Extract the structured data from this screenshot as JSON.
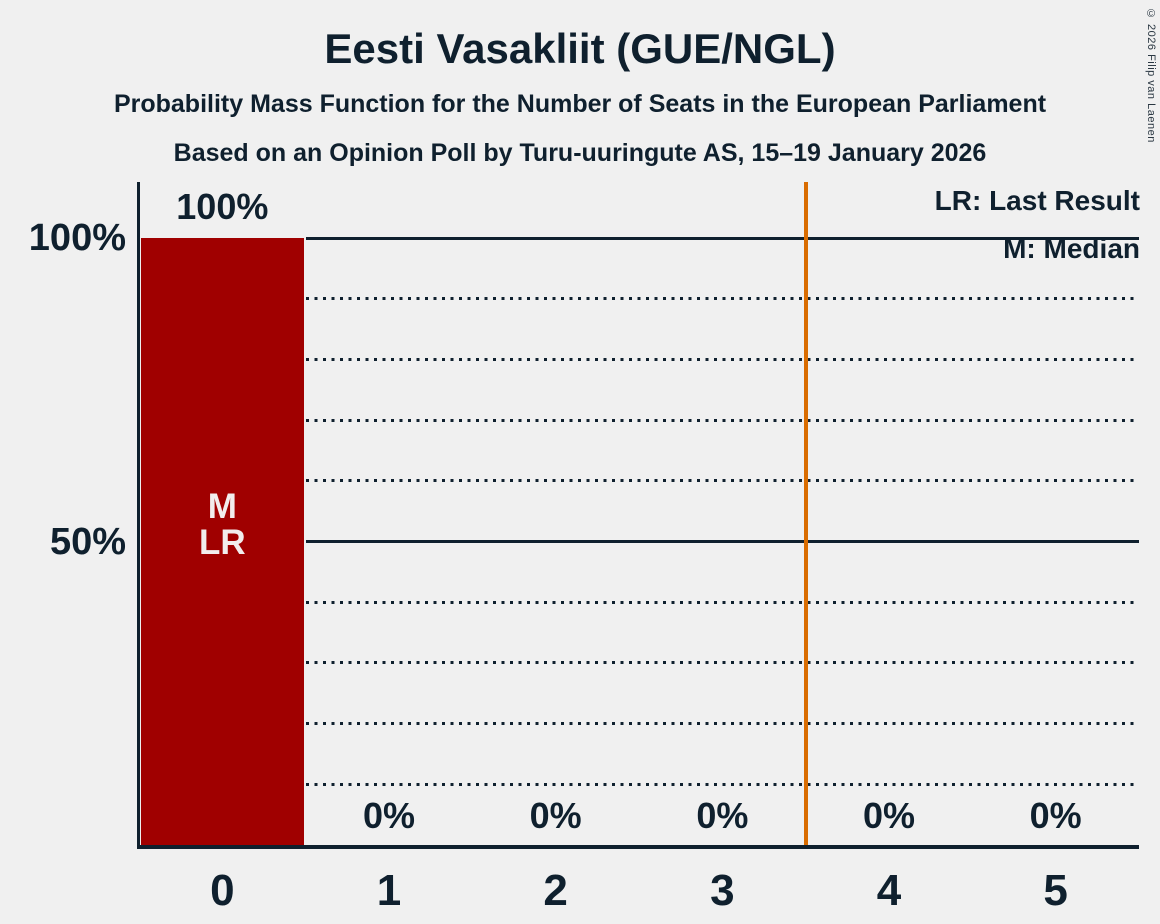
{
  "header": {
    "title": "Eesti Vasakliit (GUE/NGL)",
    "subtitle1": "Probability Mass Function for the Number of Seats in the European Parliament",
    "subtitle2": "Based on an Opinion Poll by Turu-uuringute AS, 15–19 January 2026",
    "copyright": "© 2026 Filip van Laenen"
  },
  "legend": {
    "lr": "LR: Last Result",
    "m": "M: Median"
  },
  "chart_data": {
    "type": "bar",
    "title": "Eesti Vasakliit (GUE/NGL)",
    "subtitle": "Probability Mass Function for the Number of Seats in the European Parliament",
    "source_note": "Based on an Opinion Poll by Turu-uuringute AS, 15–19 January 2026",
    "categories": [
      "0",
      "1",
      "2",
      "3",
      "4",
      "5"
    ],
    "values": [
      100,
      0,
      0,
      0,
      0,
      0
    ],
    "value_labels": [
      "100%",
      "0%",
      "0%",
      "0%",
      "0%",
      "0%"
    ],
    "bar_annotations": [
      [
        "M",
        "LR"
      ],
      [],
      [],
      [],
      [],
      []
    ],
    "median_seats": "0",
    "last_result_seats": "0",
    "y_axis": {
      "ticks": [
        {
          "label": "100%",
          "value": 100
        },
        {
          "label": "50%",
          "value": 50
        }
      ],
      "range": [
        0,
        100
      ],
      "grid_interval_pct": 10,
      "solid_lines_at_pct": [
        50,
        100
      ]
    },
    "reference_line_x": 3.5,
    "legend_entries": [
      "LR: Last Result",
      "M: Median"
    ],
    "grid": "dotted every 10%, solid at 50% and 100%, drawn right of the bar",
    "legend_position": "top-right",
    "colors": {
      "bar": "#A00000",
      "reference_line": "#D96C00",
      "ink": "#0F202E",
      "background": "#F0F0F0",
      "bar_label": "#F2EDED"
    }
  }
}
